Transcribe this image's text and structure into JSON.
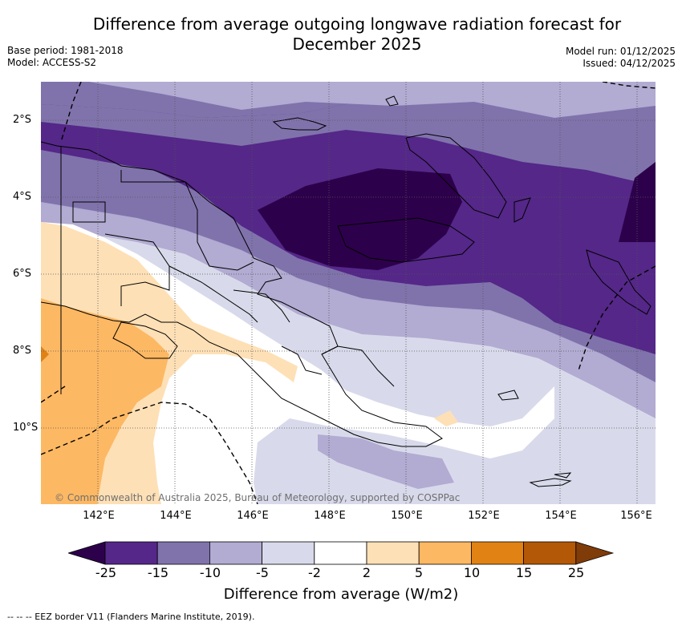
{
  "title_line1": "Difference from average outgoing longwave radiation forecast for",
  "title_line2": "December 2025",
  "base_period": "Base period: 1981-2018",
  "model": "Model: ACCESS-S2",
  "model_run": "Model run: 01/12/2025",
  "issued": "Issued: 04/12/2025",
  "copyright": "© Commonwealth of Australia 2025, Bureau of Meteorology, supported by COSPPac",
  "lon_ticks": [
    "142°E",
    "144°E",
    "146°E",
    "148°E",
    "150°E",
    "152°E",
    "154°E",
    "156°E"
  ],
  "lat_ticks": [
    "2°S",
    "4°S",
    "6°S",
    "8°S",
    "10°S"
  ],
  "colorbar": {
    "labels": [
      "-25",
      "-15",
      "-10",
      "-5",
      "-2",
      "2",
      "5",
      "10",
      "15",
      "25"
    ],
    "colors": [
      "#2d004b",
      "#542788",
      "#8073ac",
      "#b2abd2",
      "#d8daeb",
      "#ffffff",
      "#fee0b6",
      "#fdb863",
      "#e08214",
      "#b35806",
      "#7f3b08"
    ],
    "title": "Difference from average (W/m2)"
  },
  "legend_note": "--  --  -- EEZ border V11 (Flanders Marine Institute, 2019)."
}
